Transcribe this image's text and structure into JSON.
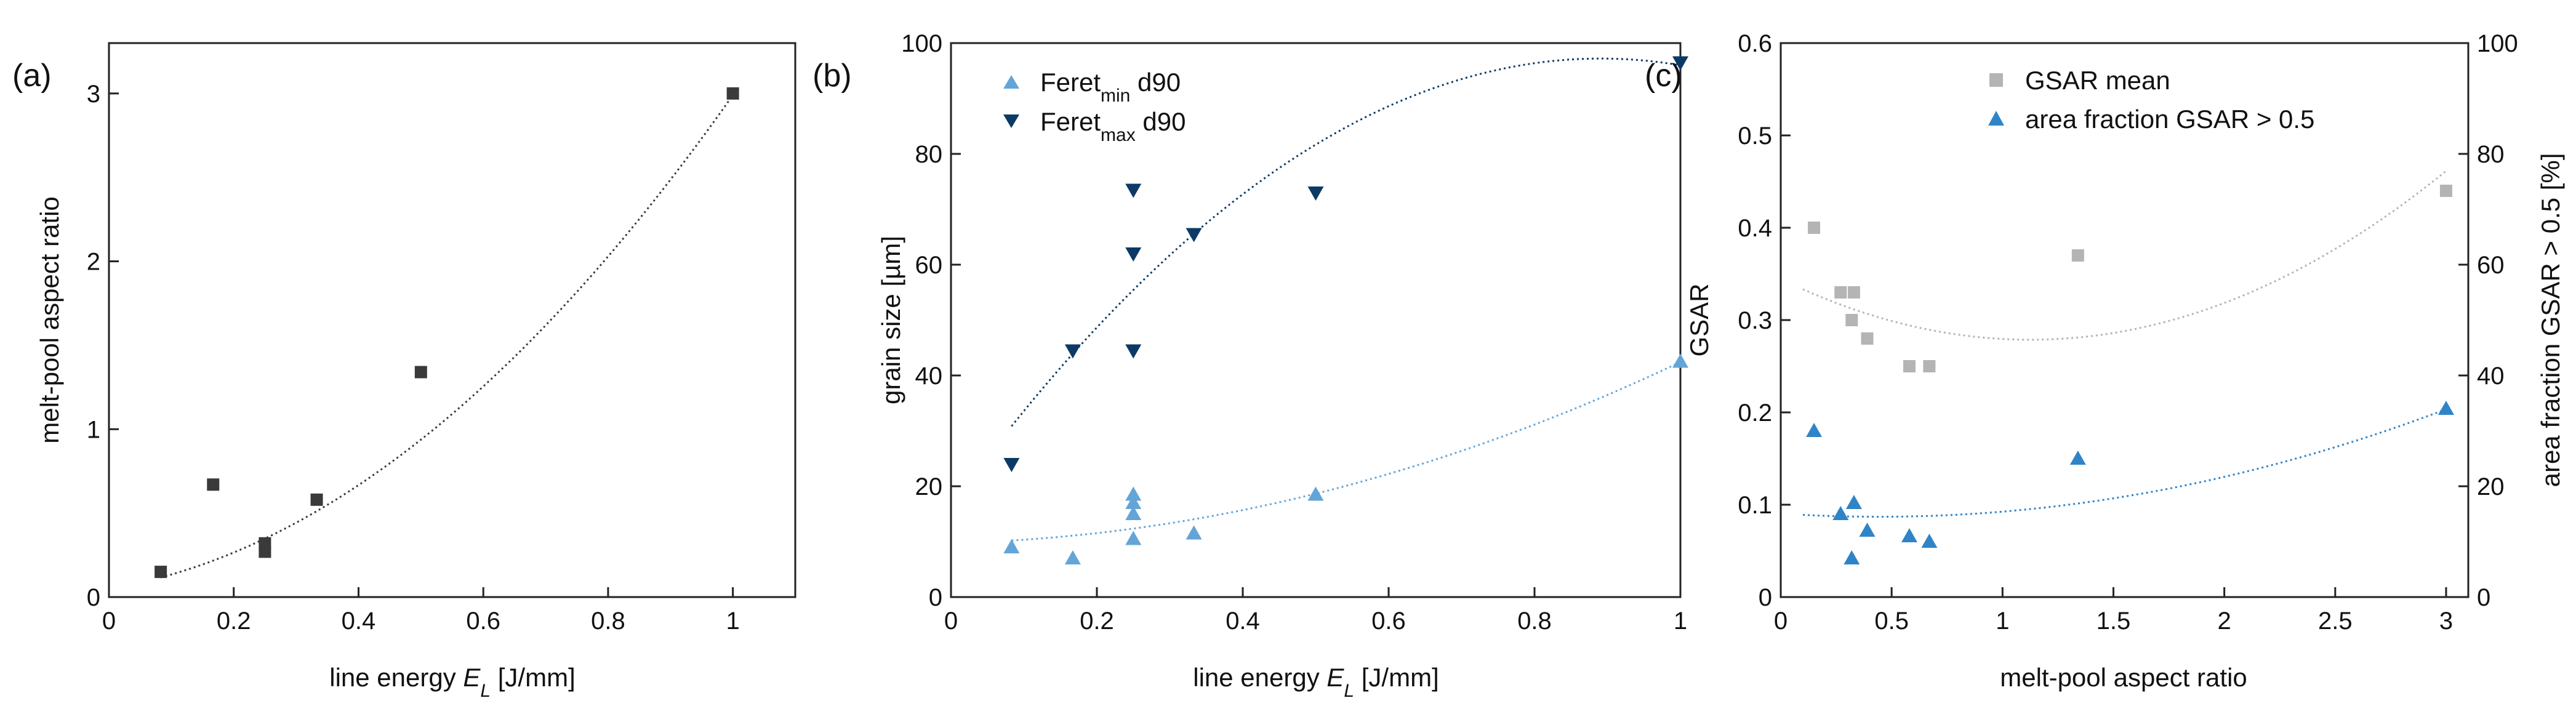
{
  "colors": {
    "black": "#3a3a3a",
    "light_blue": "#64a5d8",
    "dark_navy": "#0c3a66",
    "gray": "#b4b4b4",
    "blue": "#2f84c8"
  },
  "chart_data": [
    {
      "panel": "(a)",
      "type": "scatter",
      "xlabel_prefix": "line energy ",
      "xlabel_var": "E",
      "xlabel_sub": "L",
      "xlabel_suffix": " [J/mm]",
      "ylabel": "melt-pool aspect ratio",
      "xlim": [
        0,
        1.1
      ],
      "ylim": [
        0,
        3.3
      ],
      "xticks": [
        0,
        0.2,
        0.4,
        0.6,
        0.8,
        1
      ],
      "xtick_labels": [
        "0",
        "0.2",
        "0.4",
        "0.6",
        "0.8",
        "1"
      ],
      "yticks": [
        0,
        1,
        2,
        3
      ],
      "ytick_labels": [
        "0",
        "1",
        "2",
        "3"
      ],
      "series": [
        {
          "name": "melt-pool aspect ratio",
          "marker": "square",
          "color": "#3a3a3a",
          "points": [
            [
              0.083,
              0.15
            ],
            [
              0.167,
              0.67
            ],
            [
              0.25,
              0.32
            ],
            [
              0.25,
              0.27
            ],
            [
              0.333,
              0.58
            ],
            [
              0.5,
              1.34
            ],
            [
              1.0,
              3.0
            ]
          ],
          "fit": {
            "style": "dotted",
            "coeffs": [
              0.05,
              0.61,
              2.33
            ],
            "range": [
              0.083,
              1.0
            ]
          }
        }
      ]
    },
    {
      "panel": "(b)",
      "type": "scatter",
      "xlabel_prefix": "line energy ",
      "xlabel_var": "E",
      "xlabel_sub": "L",
      "xlabel_suffix": " [J/mm]",
      "ylabel": "grain size [µm]",
      "xlim": [
        0,
        1.0
      ],
      "ylim": [
        0,
        100
      ],
      "xticks": [
        0,
        0.2,
        0.4,
        0.6,
        0.8,
        1
      ],
      "xtick_labels": [
        "0",
        "0.2",
        "0.4",
        "0.6",
        "0.8",
        "1"
      ],
      "yticks": [
        0,
        20,
        40,
        60,
        80,
        100
      ],
      "ytick_labels": [
        "0",
        "20",
        "40",
        "60",
        "80",
        "100"
      ],
      "series": [
        {
          "name": "Feret_min d90",
          "legend_main": "Feret",
          "legend_sub": "min",
          "legend_tail": " d90",
          "marker": "triangle-up",
          "color": "#64a5d8",
          "points": [
            [
              0.083,
              9
            ],
            [
              0.167,
              7
            ],
            [
              0.25,
              10.5
            ],
            [
              0.25,
              15
            ],
            [
              0.25,
              17
            ],
            [
              0.25,
              18.5
            ],
            [
              0.333,
              11.5
            ],
            [
              0.5,
              18.5
            ],
            [
              1.0,
              42.5
            ]
          ],
          "fit": {
            "style": "dotted",
            "coeffs": [
              9.76,
              2.96,
              29.7
            ],
            "range": [
              0.083,
              1.0
            ]
          }
        },
        {
          "name": "Feret_max d90",
          "legend_main": "Feret",
          "legend_sub": "max",
          "legend_tail": " d90",
          "marker": "triangle-down",
          "color": "#0c3a66",
          "points": [
            [
              0.083,
              24
            ],
            [
              0.167,
              44.5
            ],
            [
              0.25,
              44.5
            ],
            [
              0.25,
              62
            ],
            [
              0.25,
              73.5
            ],
            [
              0.333,
              65.5
            ],
            [
              0.5,
              73
            ],
            [
              1.0,
              96.5
            ]
          ],
          "fit": {
            "style": "dotted",
            "coeffs": [
              16.5,
              181.2,
              -101.7
            ],
            "range": [
              0.083,
              1.0
            ]
          }
        }
      ]
    },
    {
      "panel": "(c)",
      "type": "scatter",
      "xlabel": "melt-pool aspect ratio",
      "ylabel": "GSAR",
      "y2label": "area fraction GSAR > 0.5 [%]",
      "xlim": [
        0,
        3.1
      ],
      "ylim": [
        0,
        0.6
      ],
      "y2lim": [
        0,
        100
      ],
      "xticks": [
        0,
        0.5,
        1,
        1.5,
        2,
        2.5,
        3
      ],
      "xtick_labels": [
        "0",
        "0.5",
        "1",
        "1.5",
        "2",
        "2.5",
        "3"
      ],
      "yticks": [
        0,
        0.1,
        0.2,
        0.3,
        0.4,
        0.5,
        0.6
      ],
      "ytick_labels": [
        "0",
        "0.1",
        "0.2",
        "0.3",
        "0.4",
        "0.5",
        "0.6"
      ],
      "y2ticks": [
        0,
        20,
        40,
        60,
        80,
        100
      ],
      "y2tick_labels": [
        "0",
        "20",
        "40",
        "60",
        "80",
        "100"
      ],
      "series": [
        {
          "name": "GSAR mean",
          "axis": "left",
          "marker": "square",
          "color": "#b4b4b4",
          "points": [
            [
              0.15,
              0.4
            ],
            [
              0.27,
              0.33
            ],
            [
              0.33,
              0.33
            ],
            [
              0.32,
              0.3
            ],
            [
              0.39,
              0.28
            ],
            [
              0.58,
              0.25
            ],
            [
              0.67,
              0.25
            ],
            [
              1.34,
              0.37
            ],
            [
              3.0,
              0.44
            ]
          ],
          "fit": {
            "style": "dotted",
            "coeffs": [
              0.3445,
              -0.117,
              0.052
            ],
            "range": [
              0.1,
              3.0
            ]
          }
        },
        {
          "name": "area fraction GSAR > 0.5",
          "axis": "right",
          "marker": "triangle-up",
          "color": "#2f84c8",
          "points": [
            [
              0.15,
              30
            ],
            [
              0.27,
              15
            ],
            [
              0.32,
              7
            ],
            [
              0.33,
              17
            ],
            [
              0.39,
              12
            ],
            [
              0.58,
              11
            ],
            [
              0.67,
              10
            ],
            [
              1.34,
              25
            ],
            [
              3.0,
              34
            ]
          ],
          "fit": {
            "style": "dotted",
            "coeffs": [
              15.06,
              -2.6,
              2.96
            ],
            "range": [
              0.1,
              3.0
            ]
          }
        }
      ]
    }
  ]
}
